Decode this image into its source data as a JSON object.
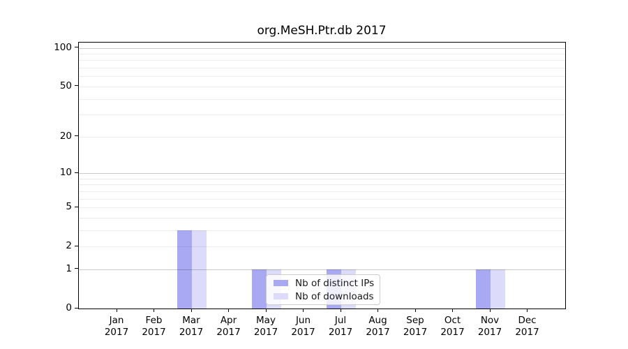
{
  "chart_data": {
    "type": "bar",
    "title": "org.MeSH.Ptr.db 2017",
    "x_categories": [
      "Jan",
      "Feb",
      "Mar",
      "Apr",
      "May",
      "Jun",
      "Jul",
      "Aug",
      "Sep",
      "Oct",
      "Nov",
      "Dec"
    ],
    "x_year": "2017",
    "series": [
      {
        "key": "distinct-ips",
        "name": "Nb of distinct IPs",
        "color": "#a9a9f3",
        "values": [
          0,
          0,
          3,
          0,
          1,
          0,
          1,
          0,
          0,
          0,
          1,
          0
        ]
      },
      {
        "key": "downloads",
        "name": "Nb of downloads",
        "color": "#dcdcfa",
        "values": [
          0,
          0,
          3,
          0,
          1,
          0,
          1,
          0,
          0,
          0,
          1,
          0
        ]
      }
    ],
    "y_axis": {
      "scale": "log1p",
      "tick_labels": [
        0,
        1,
        2,
        5,
        10,
        20,
        50,
        100
      ],
      "major_gridlines": [
        1,
        10,
        100
      ],
      "minor_gridlines": [
        2,
        3,
        4,
        5,
        6,
        7,
        8,
        9,
        20,
        30,
        40,
        50,
        60,
        70,
        80,
        90
      ],
      "top_value": 110,
      "ylim": [
        0,
        110
      ]
    },
    "legend_position": "lower-center",
    "grid": true
  },
  "colors": {
    "major_grid": "#c9c9c9",
    "minor_grid": "#ececec",
    "spine": "#000000",
    "legend_border": "#cccccc"
  }
}
